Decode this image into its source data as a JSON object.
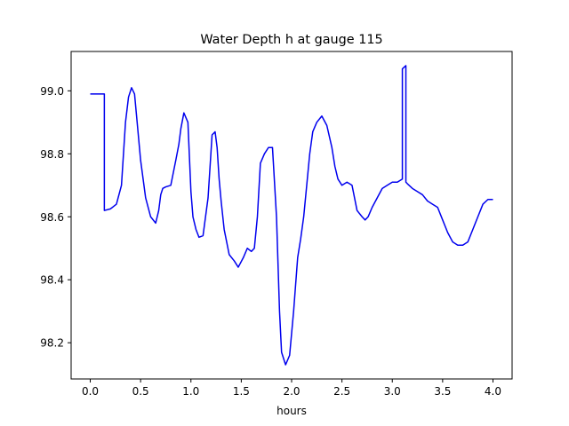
{
  "chart_data": {
    "type": "line",
    "title": "Water Depth h at gauge 115",
    "xlabel": "hours",
    "ylabel": "",
    "xlim": [
      -0.19,
      4.19
    ],
    "ylim": [
      98.085,
      99.125
    ],
    "grid": false,
    "legend": "none",
    "xticks": [
      0.0,
      0.5,
      1.0,
      1.5,
      2.0,
      2.5,
      3.0,
      3.5,
      4.0
    ],
    "xtick_labels": [
      "0.0",
      "0.5",
      "1.0",
      "1.5",
      "2.0",
      "2.5",
      "3.0",
      "3.5",
      "4.0"
    ],
    "yticks": [
      98.2,
      98.4,
      98.6,
      98.8,
      99.0
    ],
    "ytick_labels": [
      "98.2",
      "98.4",
      "98.6",
      "98.8",
      "99.0"
    ],
    "series": [
      {
        "color": "#0000ee",
        "x": [
          0.0,
          0.14,
          0.14,
          0.2,
          0.26,
          0.31,
          0.35,
          0.38,
          0.41,
          0.44,
          0.46,
          0.5,
          0.55,
          0.6,
          0.65,
          0.68,
          0.7,
          0.72,
          0.75,
          0.8,
          0.85,
          0.88,
          0.9,
          0.93,
          0.97,
          1.0,
          1.02,
          1.05,
          1.08,
          1.12,
          1.17,
          1.21,
          1.24,
          1.26,
          1.28,
          1.3,
          1.33,
          1.38,
          1.43,
          1.47,
          1.52,
          1.56,
          1.6,
          1.63,
          1.66,
          1.69,
          1.73,
          1.77,
          1.81,
          1.85,
          1.88,
          1.9,
          1.94,
          1.98,
          2.02,
          2.06,
          2.09,
          2.12,
          2.15,
          2.18,
          2.21,
          2.25,
          2.3,
          2.35,
          2.4,
          2.43,
          2.46,
          2.5,
          2.55,
          2.6,
          2.65,
          2.7,
          2.73,
          2.76,
          2.8,
          2.85,
          2.9,
          2.95,
          3.0,
          3.05,
          3.1,
          3.1,
          3.135,
          3.135,
          3.15,
          3.2,
          3.25,
          3.3,
          3.35,
          3.4,
          3.45,
          3.5,
          3.55,
          3.6,
          3.65,
          3.7,
          3.75,
          3.8,
          3.85,
          3.9,
          3.95,
          4.0
        ],
        "y": [
          98.99,
          98.99,
          98.62,
          98.625,
          98.64,
          98.7,
          98.9,
          98.98,
          99.01,
          98.99,
          98.92,
          98.78,
          98.66,
          98.6,
          98.58,
          98.62,
          98.67,
          98.69,
          98.695,
          98.7,
          98.78,
          98.83,
          98.88,
          98.93,
          98.9,
          98.68,
          98.6,
          98.56,
          98.535,
          98.54,
          98.66,
          98.86,
          98.87,
          98.82,
          98.72,
          98.65,
          98.56,
          98.48,
          98.46,
          98.44,
          98.47,
          98.5,
          98.49,
          98.5,
          98.6,
          98.77,
          98.8,
          98.82,
          98.82,
          98.6,
          98.3,
          98.17,
          98.13,
          98.16,
          98.3,
          98.47,
          98.53,
          98.6,
          98.7,
          98.8,
          98.87,
          98.9,
          98.92,
          98.89,
          98.82,
          98.76,
          98.72,
          98.7,
          98.71,
          98.7,
          98.62,
          98.6,
          98.59,
          98.6,
          98.63,
          98.66,
          98.69,
          98.7,
          98.71,
          98.71,
          98.72,
          99.07,
          99.08,
          98.71,
          98.705,
          98.69,
          98.68,
          98.67,
          98.65,
          98.64,
          98.63,
          98.59,
          98.55,
          98.52,
          98.51,
          98.51,
          98.52,
          98.56,
          98.6,
          98.64,
          98.655,
          98.655
        ]
      }
    ]
  }
}
